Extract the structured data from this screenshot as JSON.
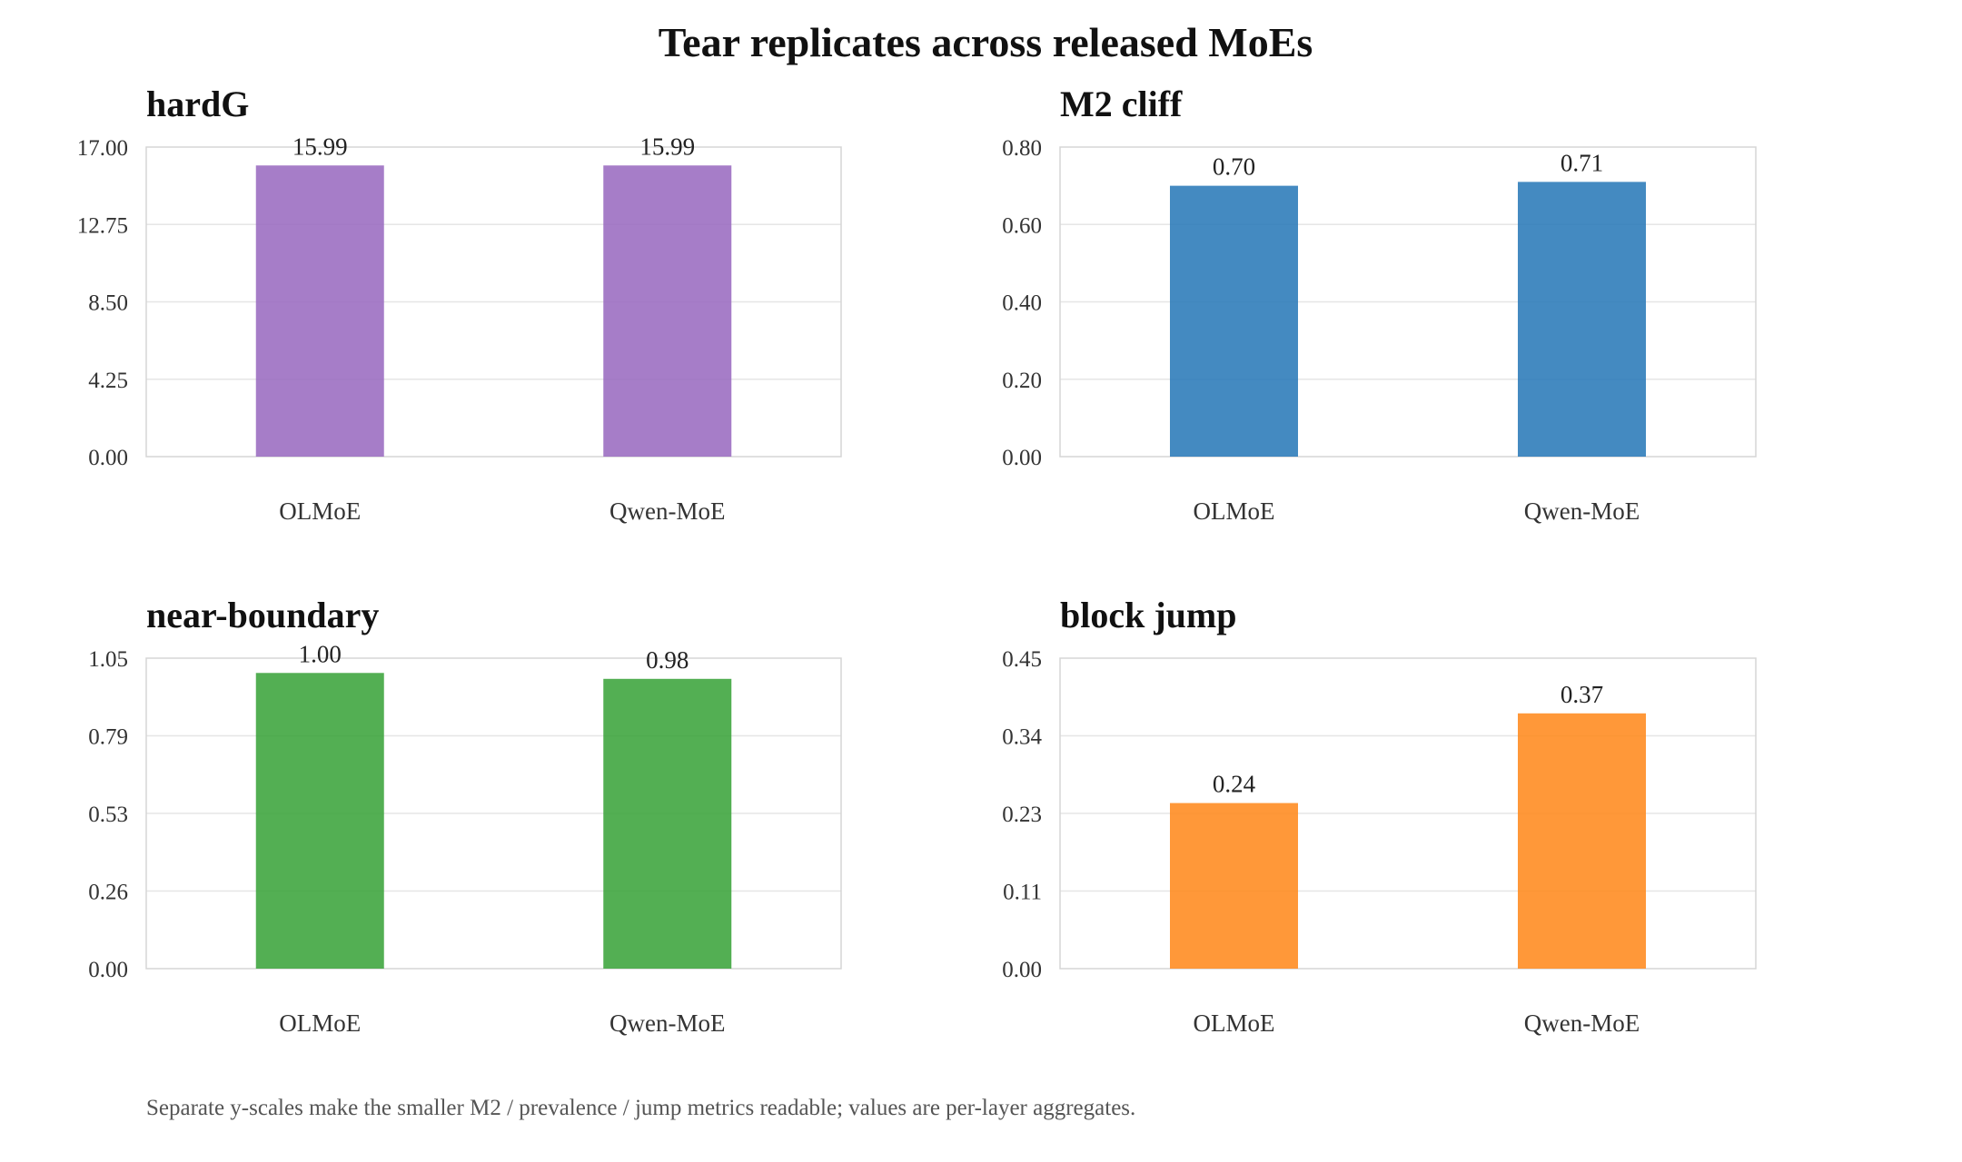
{
  "chart_data": {
    "title": "Tear replicates across released MoEs",
    "caption": "Separate y-scales make the smaller M2 / prevalence / jump metrics readable; values are per-layer aggregates.",
    "panels": [
      {
        "type": "bar",
        "title": "hardG",
        "categories": [
          "OLMoE",
          "Qwen-MoE"
        ],
        "values": [
          15.99,
          15.99
        ],
        "value_labels": [
          "15.99",
          "15.99"
        ],
        "ylim": [
          0,
          17
        ],
        "yticks": [
          "0.00",
          "4.25",
          "8.50",
          "12.75",
          "17.00"
        ],
        "color": "#9a6bc0",
        "grid": true
      },
      {
        "type": "bar",
        "title": "M2 cliff",
        "categories": [
          "OLMoE",
          "Qwen-MoE"
        ],
        "values": [
          0.7,
          0.71
        ],
        "value_labels": [
          "0.70",
          "0.71"
        ],
        "ylim": [
          0,
          0.8
        ],
        "yticks": [
          "0.00",
          "0.20",
          "0.40",
          "0.60",
          "0.80"
        ],
        "color": "#2a7ab8",
        "grid": true
      },
      {
        "type": "bar",
        "title": "near-boundary",
        "categories": [
          "OLMoE",
          "Qwen-MoE"
        ],
        "values": [
          1.0,
          0.98
        ],
        "value_labels": [
          "1.00",
          "0.98"
        ],
        "ylim": [
          0,
          1.05
        ],
        "yticks": [
          "0.00",
          "0.26",
          "0.53",
          "0.79",
          "1.05"
        ],
        "color": "#3ba43b",
        "grid": true
      },
      {
        "type": "bar",
        "title": "block jump",
        "categories": [
          "OLMoE",
          "Qwen-MoE"
        ],
        "values": [
          0.24,
          0.37
        ],
        "value_labels": [
          "0.24",
          "0.37"
        ],
        "ylim": [
          0,
          0.45
        ],
        "yticks": [
          "0.00",
          "0.11",
          "0.23",
          "0.34",
          "0.45"
        ],
        "color": "#ff8a1e",
        "grid": true
      }
    ]
  }
}
